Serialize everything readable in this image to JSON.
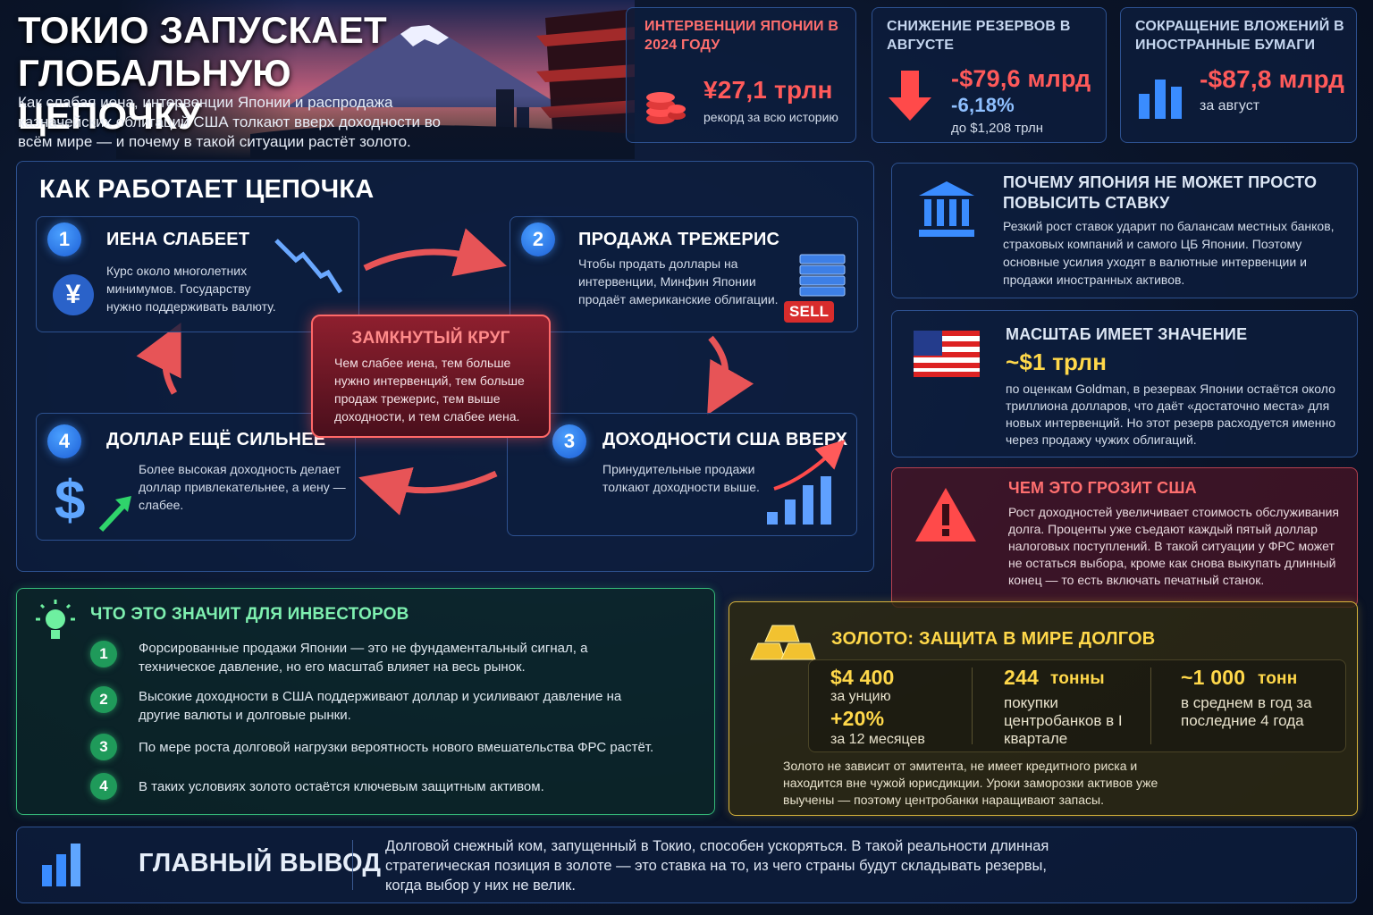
{
  "header": {
    "title": "ТОКИО ЗАПУСКАЕТ ГЛОБАЛЬНУЮ ЦЕПОЧКУ",
    "subtitle": "Как слабая иена, интервенции Японии и распродажа казначейских облигаций США толкают вверх доходности во всём мире — и почему в такой ситуации растёт золото."
  },
  "stats": [
    {
      "label": "ИНТЕРВЕНЦИИ ЯПОНИИ В 2024 ГОДУ",
      "value": "¥27,1 трлн",
      "note": "рекорд за всю историю"
    },
    {
      "label": "СНИЖЕНИЕ РЕЗЕРВОВ В АВГУСТЕ",
      "value": "-$79,6 млрд",
      "value2": "-6,18%",
      "note": "до $1,208 трлн"
    },
    {
      "label": "СОКРАЩЕНИЕ ВЛОЖЕНИЙ В ИНОСТРАННЫЕ БУМАГИ",
      "value": "-$87,8 млрд",
      "note": "за август"
    }
  ],
  "chain": {
    "title": "КАК РАБОТАЕТ ЦЕПОЧКА",
    "steps": [
      {
        "number": "1",
        "title": "ИЕНА СЛАБЕЕТ",
        "icon": "¥",
        "text": "Курс около многолетних минимумов. Государству нужно поддерживать валюту."
      },
      {
        "number": "2",
        "title": "ПРОДАЖА ТРЕЖЕРИС",
        "badge": "SELL",
        "text": "Чтобы продать доллары на интервенции, Минфин Японии продаёт американские облигации."
      },
      {
        "number": "3",
        "title": "ДОХОДНОСТИ США ВВЕРХ",
        "text": "Принудительные продажи толкают доходности выше."
      },
      {
        "number": "4",
        "title": "ДОЛЛАР ЕЩЁ СИЛЬНЕЕ",
        "icon": "$",
        "text": "Более высокая доходность делает доллар привлекательнее, а иену — слабее."
      }
    ],
    "center": {
      "title": "ЗАМКНУТЫЙ КРУГ",
      "text": "Чем слабее иена, тем больше нужно интервенций, тем больше продаж трежерис, тем выше доходности, и тем слабее иена."
    }
  },
  "panels": [
    {
      "title": "ПОЧЕМУ ЯПОНИЯ НЕ МОЖЕТ ПРОСТО ПОВЫСИТЬ СТАВКУ",
      "text": "Резкий рост ставок ударит по балансам местных банков, страховых компаний и самого ЦБ Японии. Поэтому основные усилия уходят в валютные интервенции и продажи иностранных активов."
    },
    {
      "title": "МАСШТАБ ИМЕЕТ ЗНАЧЕНИЕ",
      "highlight": "~$1 трлн",
      "text": "по оценкам Goldman, в резервах Японии остаётся около триллиона долларов, что даёт «достаточно места» для новых интервенций. Но этот резерв расходуется именно через продажу чужих облигаций."
    },
    {
      "title": "ЧЕМ ЭТО ГРОЗИТ США",
      "text": "Рост доходностей увеличивает стоимость обслуживания долга. Проценты уже съедают каждый пятый доллар налоговых поступлений. В такой ситуации у ФРС может не остаться выбора, кроме как снова выкупать длинный конец — то есть включать печатный станок."
    }
  ],
  "investors": {
    "title": "ЧТО ЭТО ЗНАЧИТ ДЛЯ ИНВЕСТОРОВ",
    "items": [
      {
        "number": "1",
        "text": "Форсированные продажи Японии — это не фундаментальный сигнал, а техническое давление, но его масштаб влияет на весь рынок."
      },
      {
        "number": "2",
        "text": "Высокие доходности в США поддерживают доллар и усиливают давление на другие валюты и долговые рынки."
      },
      {
        "number": "3",
        "text": "По мере роста долговой нагрузки вероятность нового вмешательства ФРС растёт."
      },
      {
        "number": "4",
        "text": "В таких условиях золото остаётся ключевым защитным активом."
      }
    ]
  },
  "gold": {
    "title": "ЗОЛОТО: ЗАЩИТА В МИРЕ ДОЛГОВ",
    "stats": [
      {
        "value": "$4 400",
        "label": "за унцию",
        "value2": "+20%",
        "label2": "за 12 месяцев"
      },
      {
        "value": "244",
        "unit": "тонны",
        "label": "покупки центробанков в I квартале"
      },
      {
        "value": "~1 000",
        "unit": "тонн",
        "label": "в среднем в год за последние 4 года"
      }
    ],
    "text": "Золото не зависит от эмитента, не имеет кредитного риска и находится вне чужой юрисдикции. Уроки заморозки активов уже выучены — поэтому центробанки наращивают запасы."
  },
  "conclusion": {
    "title": "ГЛАВНЫЙ ВЫВОД",
    "text": "Долговой снежный ком, запущенный в Токио, способен ускоряться. В такой реальности длинная стратегическая позиция в золоте — это ставка на то, из чего страны будут складывать резервы, когда выбор у них не велик."
  }
}
